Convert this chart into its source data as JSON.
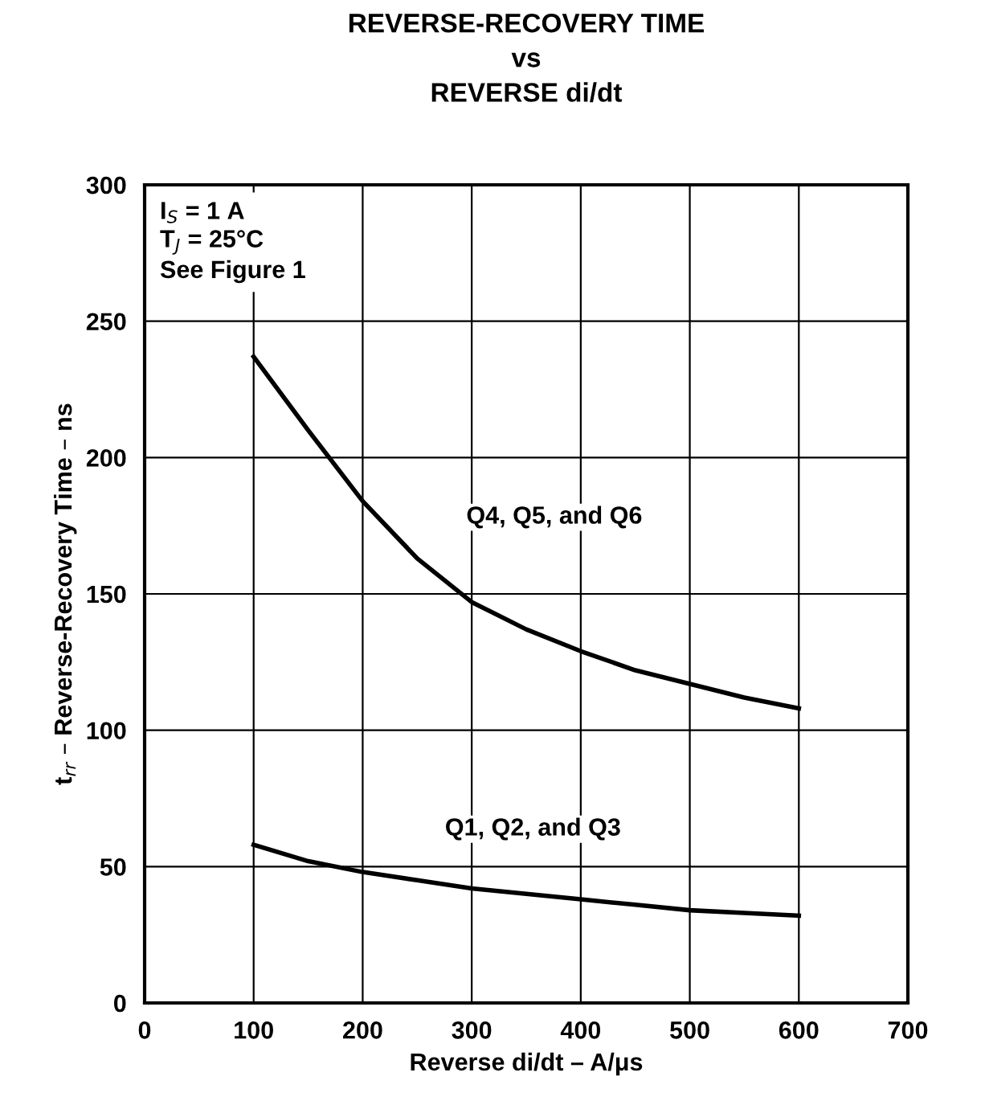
{
  "chart_data": {
    "type": "line",
    "title": "REVERSE-RECOVERY TIME\nvs\nREVERSE di/dt",
    "xlabel": "Reverse di/dt – A/μs",
    "ylabel": "t$_{rr}$ – Reverse-Recovery Time – ns",
    "annotations": [
      "I$_{S}$ = 1 A",
      "T$_{J}$ = 25°C",
      "See Figure 1"
    ],
    "series": [
      {
        "name": "Q4, Q5, and Q6",
        "color": "#000000",
        "x": [
          100,
          150,
          200,
          250,
          300,
          350,
          400,
          450,
          500,
          550,
          600
        ],
        "values": [
          237,
          210,
          184,
          163,
          147,
          137,
          129,
          122,
          117,
          112,
          108
        ]
      },
      {
        "name": "Q1, Q2, and Q3",
        "color": "#000000",
        "x": [
          100,
          150,
          200,
          250,
          300,
          350,
          400,
          450,
          500,
          550,
          600
        ],
        "values": [
          58,
          52,
          48,
          45,
          42,
          40,
          38,
          36,
          34,
          33,
          32
        ]
      }
    ],
    "xlim": [
      0,
      700
    ],
    "xticks": [
      0,
      100,
      200,
      300,
      400,
      500,
      600,
      700
    ],
    "ylim": [
      0,
      300
    ],
    "yticks": [
      0,
      50,
      100,
      150,
      200,
      250,
      300
    ],
    "grid": true,
    "legend": false,
    "marker": "none",
    "line_style": "solid"
  }
}
